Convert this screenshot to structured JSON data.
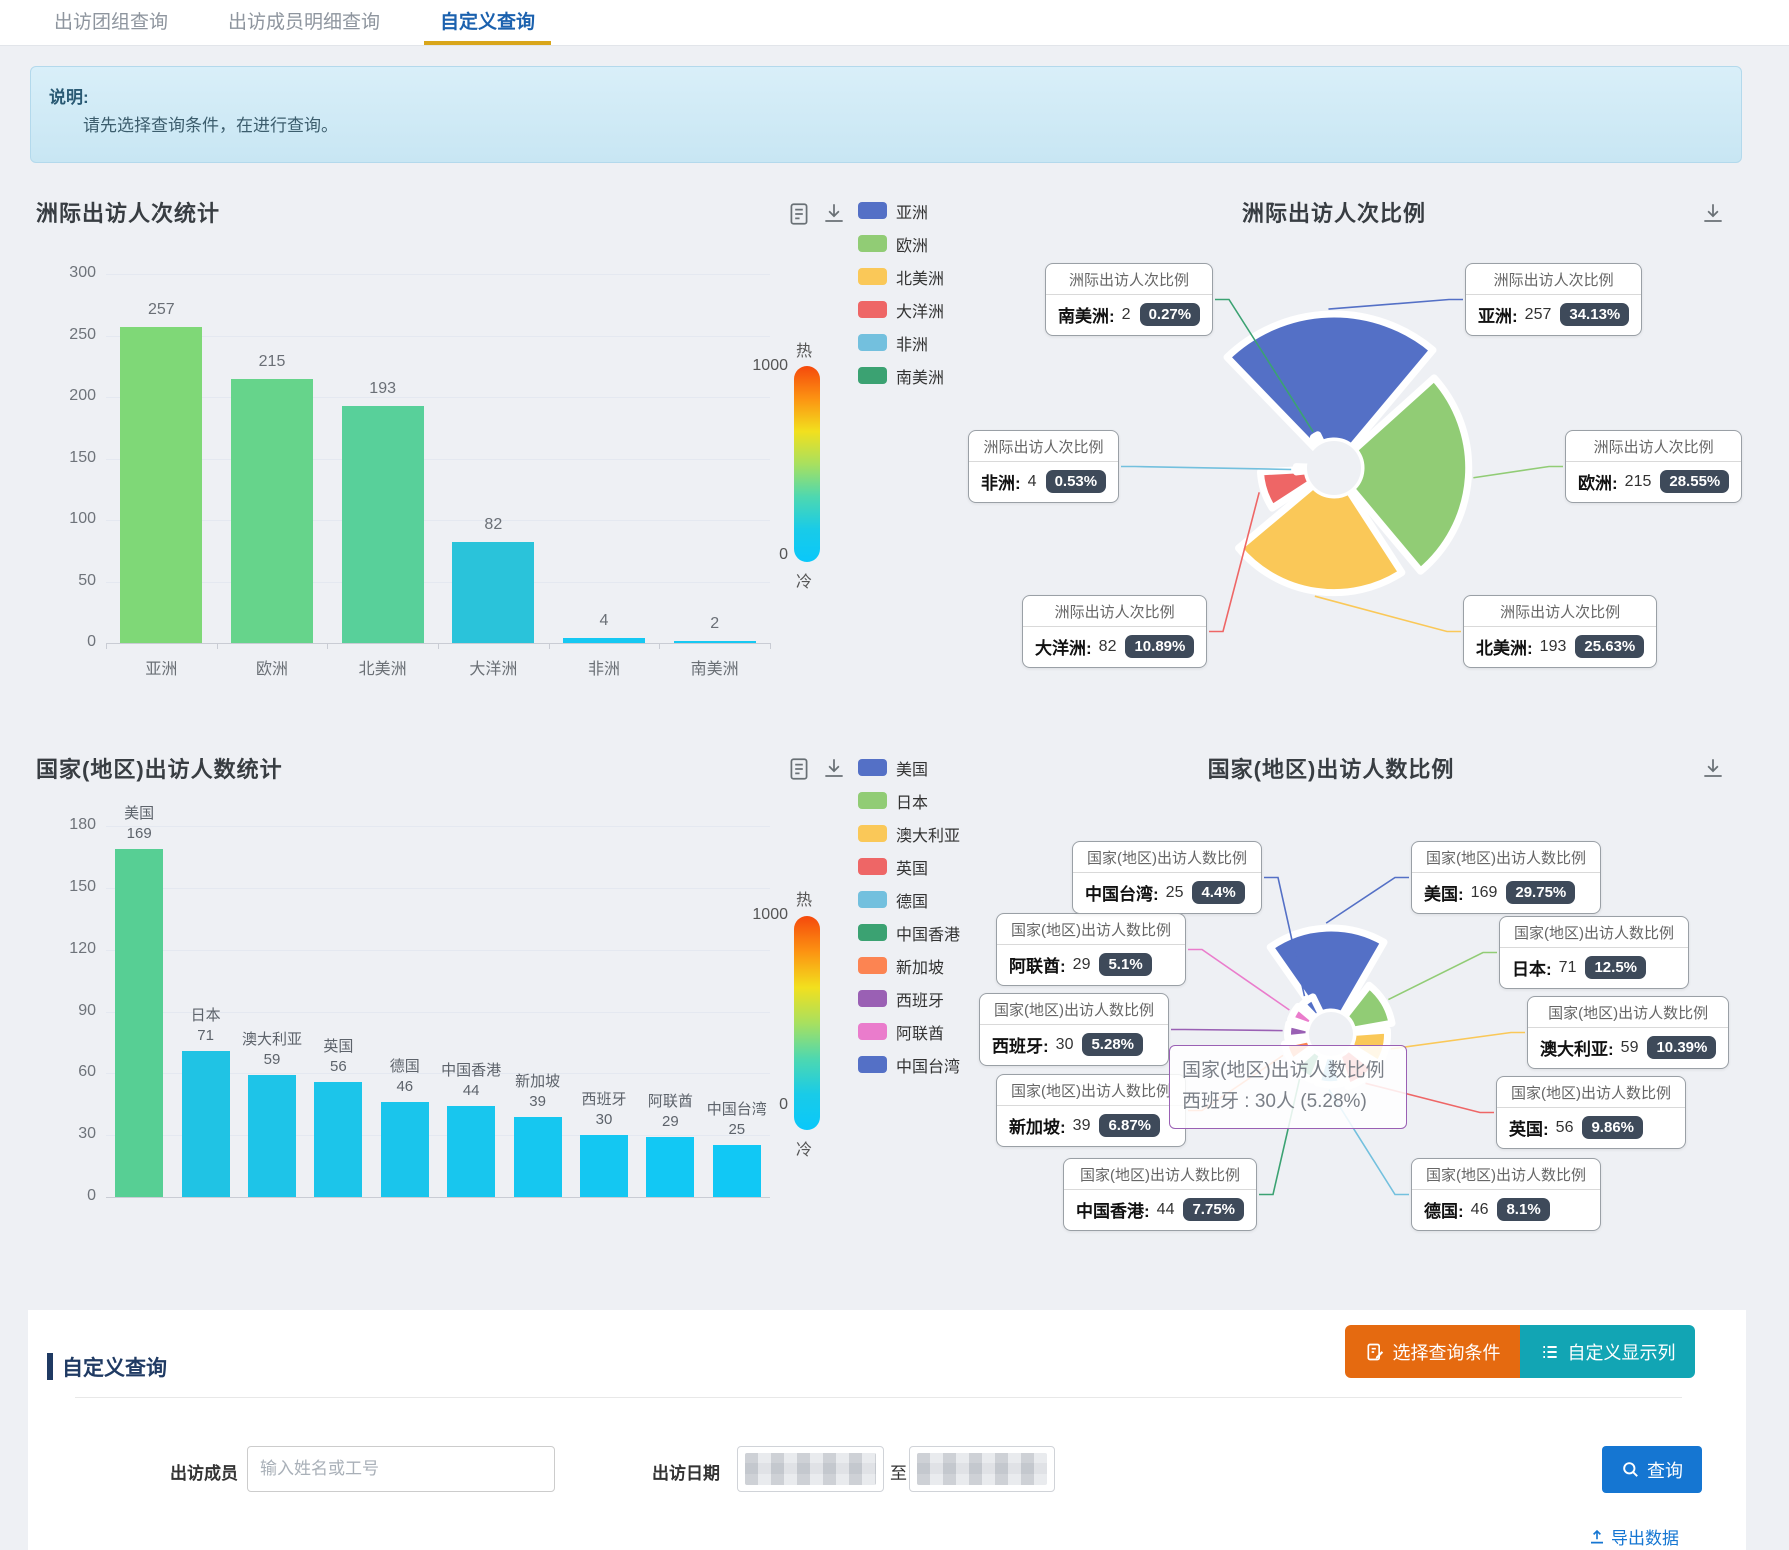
{
  "tabs": [
    {
      "label": "出访团组查询",
      "active": false
    },
    {
      "label": "出访成员明细查询",
      "active": false
    },
    {
      "label": "自定义查询",
      "active": true
    }
  ],
  "alert": {
    "title": "说明:",
    "body": "请先选择查询条件，在进行查询。"
  },
  "visualmap": {
    "hot": "热",
    "cold": "冷",
    "max": "1000",
    "min": "0",
    "gradient": [
      "#f5490c",
      "#fc9312",
      "#f2e01e",
      "#a8e05f",
      "#4ed8b0",
      "#19cbe8",
      "#0ac8fa"
    ]
  },
  "chart_data": [
    {
      "id": "continent_bar",
      "type": "bar",
      "title": "洲际出访人次统计",
      "categories": [
        "亚洲",
        "欧洲",
        "北美洲",
        "大洋洲",
        "非洲",
        "南美洲"
      ],
      "values": [
        257,
        215,
        193,
        82,
        4,
        2
      ],
      "ylim": [
        0,
        300
      ],
      "yticks": [
        0,
        50,
        100,
        150,
        200,
        250,
        300
      ],
      "bar_colors": [
        "#7fd877",
        "#66d48b",
        "#58d09a",
        "#2ac3da",
        "#16c8f2",
        "#16c8f2"
      ],
      "legend": [
        {
          "label": "亚洲",
          "color": "#5470c6"
        },
        {
          "label": "欧洲",
          "color": "#91cc75"
        },
        {
          "label": "北美洲",
          "color": "#fac858"
        },
        {
          "label": "大洋洲",
          "color": "#ee6666"
        },
        {
          "label": "非洲",
          "color": "#73c0de"
        },
        {
          "label": "南美洲",
          "color": "#3ba272"
        }
      ]
    },
    {
      "id": "continent_pie",
      "type": "pie",
      "title": "洲际出访人次比例",
      "label_title": "洲际出访人次比例",
      "items": [
        {
          "name": "亚洲",
          "value": 257,
          "pct": "34.13%",
          "color": "#5470c6"
        },
        {
          "name": "欧洲",
          "value": 215,
          "pct": "28.55%",
          "color": "#91cc75"
        },
        {
          "name": "北美洲",
          "value": 193,
          "pct": "25.63%",
          "color": "#fac858"
        },
        {
          "name": "大洋洲",
          "value": 82,
          "pct": "10.89%",
          "color": "#ee6666"
        },
        {
          "name": "非洲",
          "value": 4,
          "pct": "0.53%",
          "color": "#73c0de"
        },
        {
          "name": "南美洲",
          "value": 2,
          "pct": "0.27%",
          "color": "#3ba272"
        }
      ]
    },
    {
      "id": "country_bar",
      "type": "bar",
      "title": "国家(地区)出访人数统计",
      "categories": [
        "美国",
        "日本",
        "澳大利亚",
        "英国",
        "德国",
        "中国香港",
        "新加坡",
        "西班牙",
        "阿联酋",
        "中国台湾"
      ],
      "values": [
        169,
        71,
        59,
        56,
        46,
        44,
        39,
        30,
        29,
        25
      ],
      "ylim": [
        0,
        180
      ],
      "yticks": [
        0,
        30,
        60,
        90,
        120,
        150,
        180
      ],
      "bar_colors": [
        "#57cf94",
        "#20c3e4",
        "#1ec4e8",
        "#1cc5ea",
        "#1ac5ec",
        "#18c6ee",
        "#16c7f0",
        "#14c7f2",
        "#12c8f4",
        "#11c8f5"
      ],
      "legend": [
        {
          "label": "美国",
          "color": "#5470c6"
        },
        {
          "label": "日本",
          "color": "#91cc75"
        },
        {
          "label": "澳大利亚",
          "color": "#fac858"
        },
        {
          "label": "英国",
          "color": "#ee6666"
        },
        {
          "label": "德国",
          "color": "#73c0de"
        },
        {
          "label": "中国香港",
          "color": "#3ba272"
        },
        {
          "label": "新加坡",
          "color": "#fc8452"
        },
        {
          "label": "西班牙",
          "color": "#9a60b4"
        },
        {
          "label": "阿联酋",
          "color": "#ea7ccc"
        },
        {
          "label": "中国台湾",
          "color": "#5470c6"
        }
      ]
    },
    {
      "id": "country_pie",
      "type": "pie",
      "title": "国家(地区)出访人数比例",
      "label_title": "国家(地区)出访人数比例",
      "items": [
        {
          "name": "美国",
          "value": 169,
          "pct": "29.75%",
          "color": "#5470c6"
        },
        {
          "name": "日本",
          "value": 71,
          "pct": "12.5%",
          "color": "#91cc75"
        },
        {
          "name": "澳大利亚",
          "value": 59,
          "pct": "10.39%",
          "color": "#fac858"
        },
        {
          "name": "英国",
          "value": 56,
          "pct": "9.86%",
          "color": "#ee6666"
        },
        {
          "name": "德国",
          "value": 46,
          "pct": "8.1%",
          "color": "#73c0de"
        },
        {
          "name": "中国香港",
          "value": 44,
          "pct": "7.75%",
          "color": "#3ba272"
        },
        {
          "name": "新加坡",
          "value": 39,
          "pct": "6.87%",
          "color": "#fc8452"
        },
        {
          "name": "西班牙",
          "value": 30,
          "pct": "5.28%",
          "color": "#9a60b4"
        },
        {
          "name": "阿联酋",
          "value": 29,
          "pct": "5.1%",
          "color": "#ea7ccc"
        },
        {
          "name": "中国台湾",
          "value": 25,
          "pct": "4.4%",
          "color": "#5470c6"
        }
      ],
      "hover_tooltip": {
        "line1": "国家(地区)出访人数比例",
        "line2": "西班牙 : 30人 (5.28%)"
      }
    }
  ],
  "panel": {
    "heading": "自定义查询",
    "buttons": [
      {
        "label": "选择查询条件",
        "color": "#e56a10",
        "icon": "form-edit-icon"
      },
      {
        "label": "自定义显示列",
        "color": "#12a5b4",
        "icon": "list-icon"
      }
    ],
    "form": {
      "member_label": "出访成员",
      "member_placeholder": "输入姓名或工号",
      "date_label": "出访日期",
      "to_label": "至",
      "search_label": "查询",
      "export_label": "导出数据"
    }
  }
}
